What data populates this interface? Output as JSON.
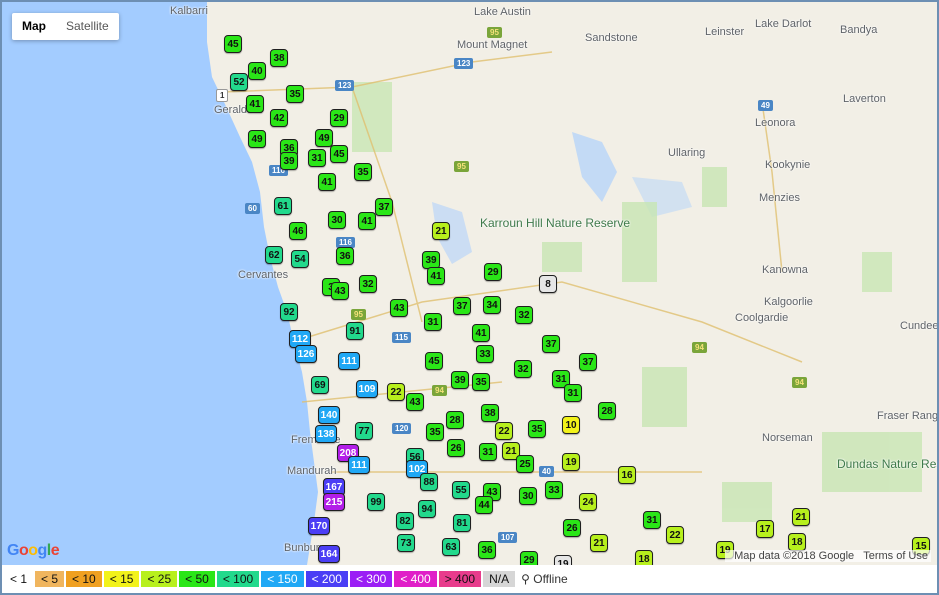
{
  "map_type": {
    "map_label": "Map",
    "satellite_label": "Satellite"
  },
  "places": [
    {
      "name": "Kalbarri"
    },
    {
      "name": "Lake Austin"
    },
    {
      "name": "Mount Magnet"
    },
    {
      "name": "Sandstone"
    },
    {
      "name": "Leinster"
    },
    {
      "name": "Lake Darlot"
    },
    {
      "name": "Bandya"
    },
    {
      "name": "Geraldton"
    },
    {
      "name": "Leonora"
    },
    {
      "name": "Laverton"
    },
    {
      "name": "Ullaring"
    },
    {
      "name": "Kookynie"
    },
    {
      "name": "Menzies"
    },
    {
      "name": "Karroun Hill Nature Reserve"
    },
    {
      "name": "Cervantes"
    },
    {
      "name": "Kanowna"
    },
    {
      "name": "Kalgoorlie"
    },
    {
      "name": "Coolgardie"
    },
    {
      "name": "Cundeele"
    },
    {
      "name": "Fraser Range"
    },
    {
      "name": "Norseman"
    },
    {
      "name": "Dundas Nature Reserve"
    },
    {
      "name": "Mandurah"
    },
    {
      "name": "Fremantle"
    },
    {
      "name": "Bunbury"
    }
  ],
  "road_shields": [
    "123",
    "95",
    "123",
    "1",
    "116",
    "95",
    "49",
    "60",
    "116",
    "95",
    "115",
    "94",
    "94",
    "120",
    "40",
    "107",
    "94"
  ],
  "markers": [
    {
      "value": "45",
      "color": "#2ae617"
    },
    {
      "value": "38",
      "color": "#2ae617"
    },
    {
      "value": "40",
      "color": "#2ae617"
    },
    {
      "value": "52",
      "color": "#22d98c"
    },
    {
      "value": "35",
      "color": "#2ae617"
    },
    {
      "value": "41",
      "color": "#2ae617"
    },
    {
      "value": "42",
      "color": "#2ae617"
    },
    {
      "value": "29",
      "color": "#2ae617"
    },
    {
      "value": "49",
      "color": "#2ae617"
    },
    {
      "value": "49",
      "color": "#2ae617"
    },
    {
      "value": "36",
      "color": "#2ae617"
    },
    {
      "value": "45",
      "color": "#2ae617"
    },
    {
      "value": "39",
      "color": "#2ae617"
    },
    {
      "value": "31",
      "color": "#2ae617"
    },
    {
      "value": "35",
      "color": "#2ae617"
    },
    {
      "value": "41",
      "color": "#2ae617"
    },
    {
      "value": "61",
      "color": "#22d98c"
    },
    {
      "value": "37",
      "color": "#2ae617"
    },
    {
      "value": "46",
      "color": "#2ae617"
    },
    {
      "value": "30",
      "color": "#2ae617"
    },
    {
      "value": "41",
      "color": "#2ae617"
    },
    {
      "value": "21",
      "color": "#b7f01d"
    },
    {
      "value": "62",
      "color": "#22d98c"
    },
    {
      "value": "54",
      "color": "#22d98c"
    },
    {
      "value": "36",
      "color": "#2ae617"
    },
    {
      "value": "39",
      "color": "#2ae617"
    },
    {
      "value": "29",
      "color": "#2ae617"
    },
    {
      "value": "41",
      "color": "#2ae617"
    },
    {
      "value": "3",
      "color": "#2ae617"
    },
    {
      "value": "43",
      "color": "#2ae617"
    },
    {
      "value": "32",
      "color": "#2ae617"
    },
    {
      "value": "8",
      "color": "#e6e6e6"
    },
    {
      "value": "43",
      "color": "#2ae617"
    },
    {
      "value": "37",
      "color": "#2ae617"
    },
    {
      "value": "34",
      "color": "#2ae617"
    },
    {
      "value": "92",
      "color": "#22d98c"
    },
    {
      "value": "31",
      "color": "#2ae617"
    },
    {
      "value": "32",
      "color": "#2ae617"
    },
    {
      "value": "91",
      "color": "#22d98c"
    },
    {
      "value": "41",
      "color": "#2ae617"
    },
    {
      "value": "112",
      "color": "#20a8f5"
    },
    {
      "value": "37",
      "color": "#2ae617"
    },
    {
      "value": "126",
      "color": "#20a8f5"
    },
    {
      "value": "33",
      "color": "#2ae617"
    },
    {
      "value": "111",
      "color": "#20a8f5"
    },
    {
      "value": "45",
      "color": "#2ae617"
    },
    {
      "value": "32",
      "color": "#2ae617"
    },
    {
      "value": "37",
      "color": "#2ae617"
    },
    {
      "value": "69",
      "color": "#22d98c"
    },
    {
      "value": "39",
      "color": "#2ae617"
    },
    {
      "value": "35",
      "color": "#2ae617"
    },
    {
      "value": "31",
      "color": "#2ae617"
    },
    {
      "value": "109",
      "color": "#20a8f5"
    },
    {
      "value": "22",
      "color": "#b7f01d"
    },
    {
      "value": "31",
      "color": "#2ae617"
    },
    {
      "value": "43",
      "color": "#2ae617"
    },
    {
      "value": "28",
      "color": "#2ae617"
    },
    {
      "value": "38",
      "color": "#2ae617"
    },
    {
      "value": "28",
      "color": "#2ae617"
    },
    {
      "value": "140",
      "color": "#20a8f5"
    },
    {
      "value": "138",
      "color": "#20a8f5"
    },
    {
      "value": "77",
      "color": "#22d98c"
    },
    {
      "value": "35",
      "color": "#2ae617"
    },
    {
      "value": "22",
      "color": "#b7f01d"
    },
    {
      "value": "35",
      "color": "#2ae617"
    },
    {
      "value": "10",
      "color": "#f2f21a"
    },
    {
      "value": "26",
      "color": "#2ae617"
    },
    {
      "value": "31",
      "color": "#2ae617"
    },
    {
      "value": "21",
      "color": "#b7f01d"
    },
    {
      "value": "208",
      "color": "#b21ee8"
    },
    {
      "value": "111",
      "color": "#20a8f5"
    },
    {
      "value": "56",
      "color": "#22d98c"
    },
    {
      "value": "25",
      "color": "#2ae617"
    },
    {
      "value": "19",
      "color": "#b7f01d"
    },
    {
      "value": "102",
      "color": "#20a8f5"
    },
    {
      "value": "16",
      "color": "#b7f01d"
    },
    {
      "value": "88",
      "color": "#22d98c"
    },
    {
      "value": "167",
      "color": "#4b3ef5"
    },
    {
      "value": "55",
      "color": "#22d98c"
    },
    {
      "value": "43",
      "color": "#2ae617"
    },
    {
      "value": "33",
      "color": "#2ae617"
    },
    {
      "value": "30",
      "color": "#2ae617"
    },
    {
      "value": "215",
      "color": "#b21ee8"
    },
    {
      "value": "99",
      "color": "#22d98c"
    },
    {
      "value": "44",
      "color": "#2ae617"
    },
    {
      "value": "24",
      "color": "#b7f01d"
    },
    {
      "value": "94",
      "color": "#22d98c"
    },
    {
      "value": "82",
      "color": "#22d98c"
    },
    {
      "value": "81",
      "color": "#22d98c"
    },
    {
      "value": "31",
      "color": "#2ae617"
    },
    {
      "value": "26",
      "color": "#2ae617"
    },
    {
      "value": "170",
      "color": "#4b3ef5"
    },
    {
      "value": "17",
      "color": "#b7f01d"
    },
    {
      "value": "22",
      "color": "#b7f01d"
    },
    {
      "value": "21",
      "color": "#b7f01d"
    },
    {
      "value": "73",
      "color": "#22d98c"
    },
    {
      "value": "63",
      "color": "#22d98c"
    },
    {
      "value": "36",
      "color": "#2ae617"
    },
    {
      "value": "21",
      "color": "#b7f01d"
    },
    {
      "value": "18",
      "color": "#b7f01d"
    },
    {
      "value": "15",
      "color": "#b7f01d"
    },
    {
      "value": "164",
      "color": "#4b3ef5"
    },
    {
      "value": "29",
      "color": "#2ae617"
    },
    {
      "value": "19",
      "color": "#e6e6e6"
    },
    {
      "value": "19",
      "color": "#b7f01d"
    },
    {
      "value": "18",
      "color": "#b7f01d"
    }
  ],
  "google_logo": "Google",
  "attribution": {
    "data": "Map data ©2018 Google",
    "terms": "Terms of Use"
  },
  "legend": [
    {
      "label": "< 1",
      "color": "#ffffff"
    },
    {
      "label": "< 5",
      "color": "#f0b55e"
    },
    {
      "label": "< 10",
      "color": "#f0a020"
    },
    {
      "label": "< 15",
      "color": "#f2f21a"
    },
    {
      "label": "< 25",
      "color": "#b7f01d"
    },
    {
      "label": "< 50",
      "color": "#2ae617"
    },
    {
      "label": "< 100",
      "color": "#22d98c"
    },
    {
      "label": "< 150",
      "color": "#20a8f5"
    },
    {
      "label": "< 200",
      "color": "#4b3ef5"
    },
    {
      "label": "< 300",
      "color": "#9b1ef5"
    },
    {
      "label": "< 400",
      "color": "#e01ec8"
    },
    {
      "label": "> 400",
      "color": "#e83c8c"
    },
    {
      "label": "N/A",
      "color": "#d6d6d6"
    }
  ],
  "offline_label": "Offline"
}
